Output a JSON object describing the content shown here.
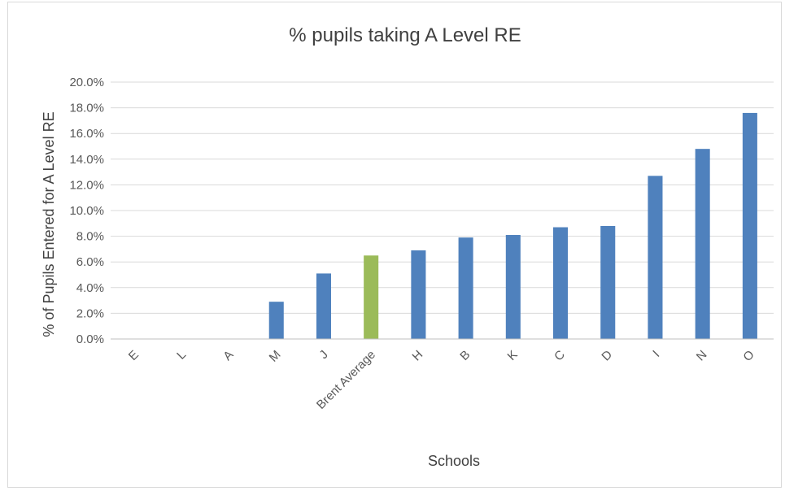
{
  "chart_data": {
    "type": "bar",
    "title": "% pupils taking A Level RE",
    "xlabel": "Schools",
    "ylabel": "% of Pupils Entered for A Level RE",
    "ylim": [
      0,
      20
    ],
    "yticks": [
      "0.0%",
      "2.0%",
      "4.0%",
      "6.0%",
      "8.0%",
      "10.0%",
      "12.0%",
      "14.0%",
      "16.0%",
      "18.0%",
      "20.0%"
    ],
    "grid": true,
    "legend": "none",
    "categories": [
      "E",
      "L",
      "A",
      "M",
      "J",
      "Brent Average",
      "H",
      "B",
      "K",
      "C",
      "D",
      "I",
      "N",
      "O"
    ],
    "values": [
      0,
      0,
      0,
      2.9,
      5.1,
      6.5,
      6.9,
      7.9,
      8.1,
      8.7,
      8.8,
      12.7,
      14.8,
      17.6
    ],
    "highlight_category": "Brent Average",
    "colors": {
      "bar": "#4f81bd",
      "highlight": "#9bbb59"
    }
  }
}
